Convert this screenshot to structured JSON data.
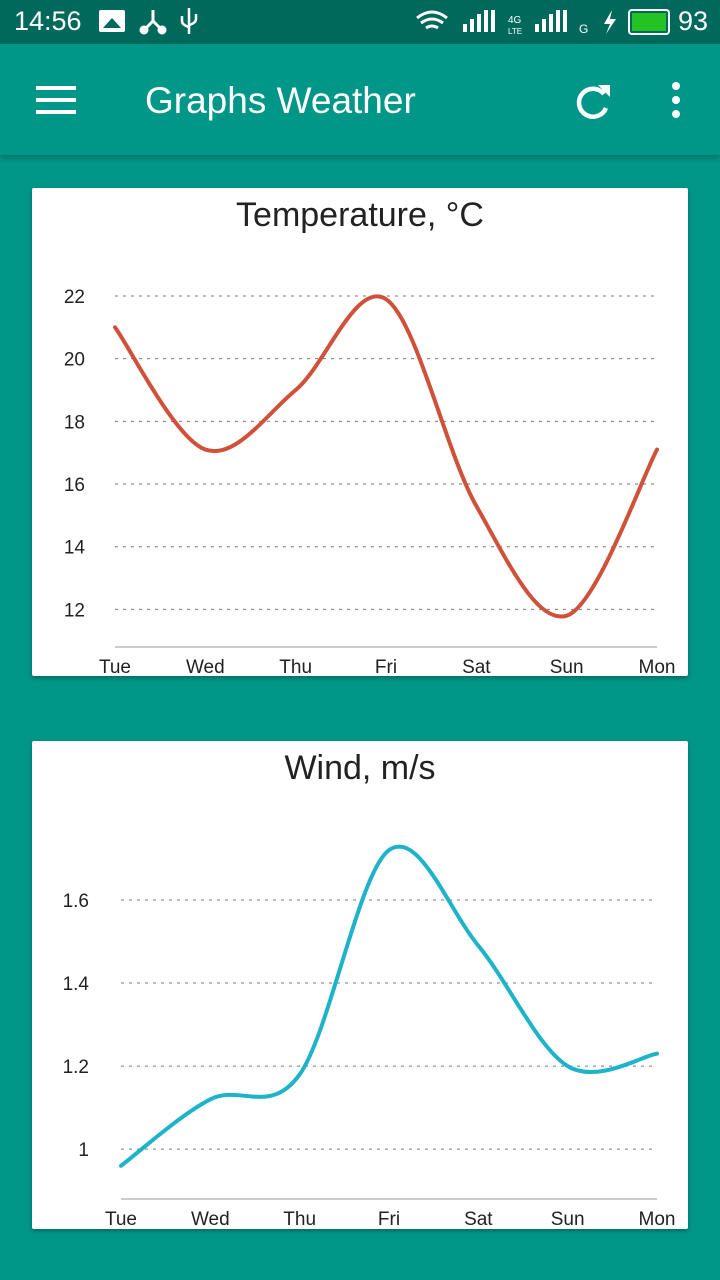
{
  "status_bar": {
    "time": "14:56",
    "battery": "93",
    "battery_color": "#22c322",
    "icons": [
      "gallery-icon",
      "share-icon",
      "usb-icon",
      "wifi-icon",
      "signal-icon",
      "4g-lte-icon",
      "signal-icon",
      "g-icon",
      "charging-icon",
      "battery-icon"
    ]
  },
  "app_bar": {
    "title": "Graphs Weather",
    "icons": [
      "menu-icon",
      "refresh-icon",
      "more-vert-icon"
    ]
  },
  "colors": {
    "primary": "#009688",
    "primary_dark": "#00695c"
  },
  "chart_data": [
    {
      "type": "line",
      "title": "Temperature, °C",
      "categories": [
        "Tue",
        "Wed",
        "Thu",
        "Fri",
        "Sat",
        "Sun",
        "Mon"
      ],
      "values": [
        21,
        17.1,
        19.0,
        21.9,
        15.3,
        11.8,
        17.1
      ],
      "yticks": [
        "12",
        "14",
        "16",
        "18",
        "20",
        "22"
      ],
      "ylim": [
        10.8,
        22
      ],
      "color": "#d0513a",
      "grid": true
    },
    {
      "type": "line",
      "title": "Wind, m/s",
      "categories": [
        "Tue",
        "Wed",
        "Thu",
        "Fri",
        "Sat",
        "Sun",
        "Mon"
      ],
      "values": [
        0.96,
        1.12,
        1.18,
        1.72,
        1.49,
        1.2,
        1.23
      ],
      "yticks": [
        "1",
        "1.2",
        "1.4",
        "1.6"
      ],
      "ylim": [
        0.88,
        1.6
      ],
      "color": "#1fb3c9",
      "grid": true
    }
  ]
}
